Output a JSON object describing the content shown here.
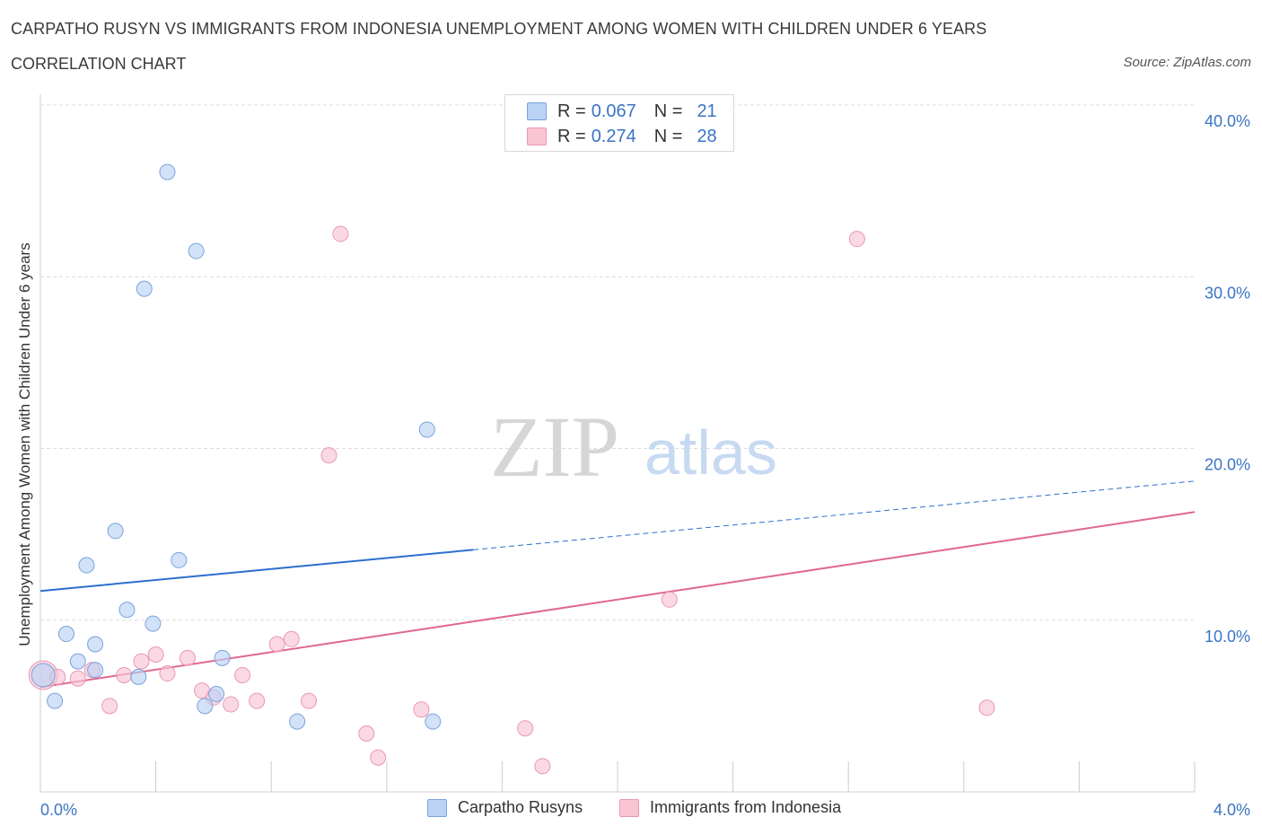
{
  "title": "CARPATHO RUSYN VS IMMIGRANTS FROM INDONESIA UNEMPLOYMENT AMONG WOMEN WITH CHILDREN UNDER 6 YEARS",
  "subtitle": "CORRELATION CHART",
  "source": "Source: ZipAtlas.com",
  "watermark": {
    "zip": "ZIP",
    "atlas": "atlas"
  },
  "legend": {
    "r_label": "R =",
    "n_label": "N =",
    "rows": [
      {
        "r": "0.067",
        "n": "21"
      },
      {
        "r": "0.274",
        "n": "28"
      }
    ]
  },
  "bottom_legend": [
    "Carpatho Rusyns",
    "Immigrants from Indonesia"
  ],
  "colors": {
    "blue_fill": "#bad3f5",
    "blue_stroke": "#7ba3db",
    "blue_line": "#2d6fce",
    "pink_fill": "#f9c5d5",
    "pink_stroke": "#e899b2",
    "pink_line": "#e0678f",
    "tick_text": "#3a74c4",
    "grid": "#dddddd"
  },
  "chart_data": {
    "type": "scatter",
    "title": "CARPATHO RUSYN VS IMMIGRANTS FROM INDONESIA UNEMPLOYMENT AMONG WOMEN WITH CHILDREN UNDER 6 YEARS",
    "xlabel": "",
    "ylabel": "Unemployment Among Women with Children Under 6 years",
    "xlim": [
      0,
      4.0
    ],
    "ylim": [
      0,
      40
    ],
    "x_tick_labels": [
      "0.0%",
      "4.0%"
    ],
    "y_ticks": [
      10,
      20,
      30,
      40
    ],
    "y_tick_labels": [
      "10.0%",
      "20.0%",
      "30.0%",
      "40.0%"
    ],
    "grid": true,
    "legend_placement": "top-center",
    "series": [
      {
        "name": "Carpatho Rusyns",
        "points": [
          [
            0.01,
            6.8
          ],
          [
            0.05,
            5.3
          ],
          [
            0.09,
            9.2
          ],
          [
            0.13,
            7.6
          ],
          [
            0.16,
            13.2
          ],
          [
            0.19,
            8.6
          ],
          [
            0.19,
            7.1
          ],
          [
            0.26,
            15.2
          ],
          [
            0.3,
            10.6
          ],
          [
            0.34,
            6.7
          ],
          [
            0.36,
            29.3
          ],
          [
            0.39,
            9.8
          ],
          [
            0.44,
            36.1
          ],
          [
            0.48,
            13.5
          ],
          [
            0.54,
            31.5
          ],
          [
            0.57,
            5.0
          ],
          [
            0.61,
            5.7
          ],
          [
            0.63,
            7.8
          ],
          [
            0.89,
            4.1
          ],
          [
            1.34,
            21.1
          ],
          [
            1.36,
            4.1
          ]
        ],
        "trend": {
          "x": [
            0,
            1.5
          ],
          "y": [
            11.7,
            14.1
          ]
        },
        "trend_extension": {
          "x": [
            1.5,
            4.0
          ],
          "y": [
            14.1,
            18.1
          ]
        }
      },
      {
        "name": "Immigrants from Indonesia",
        "points": [
          [
            0.01,
            6.8
          ],
          [
            0.06,
            6.7
          ],
          [
            0.13,
            6.6
          ],
          [
            0.18,
            7.1
          ],
          [
            0.24,
            5.0
          ],
          [
            0.29,
            6.8
          ],
          [
            0.35,
            7.6
          ],
          [
            0.4,
            8.0
          ],
          [
            0.44,
            6.9
          ],
          [
            0.51,
            7.8
          ],
          [
            0.56,
            5.9
          ],
          [
            0.6,
            5.5
          ],
          [
            0.66,
            5.1
          ],
          [
            0.7,
            6.8
          ],
          [
            0.75,
            5.3
          ],
          [
            0.82,
            8.6
          ],
          [
            0.87,
            8.9
          ],
          [
            0.93,
            5.3
          ],
          [
            1.0,
            19.6
          ],
          [
            1.04,
            32.5
          ],
          [
            1.13,
            3.4
          ],
          [
            1.17,
            2.0
          ],
          [
            1.32,
            4.8
          ],
          [
            1.68,
            3.7
          ],
          [
            1.74,
            1.5
          ],
          [
            2.18,
            11.2
          ],
          [
            2.83,
            32.2
          ],
          [
            3.28,
            4.9
          ]
        ],
        "trend": {
          "x": [
            0,
            4.0
          ],
          "y": [
            6.1,
            16.3
          ]
        }
      }
    ]
  }
}
